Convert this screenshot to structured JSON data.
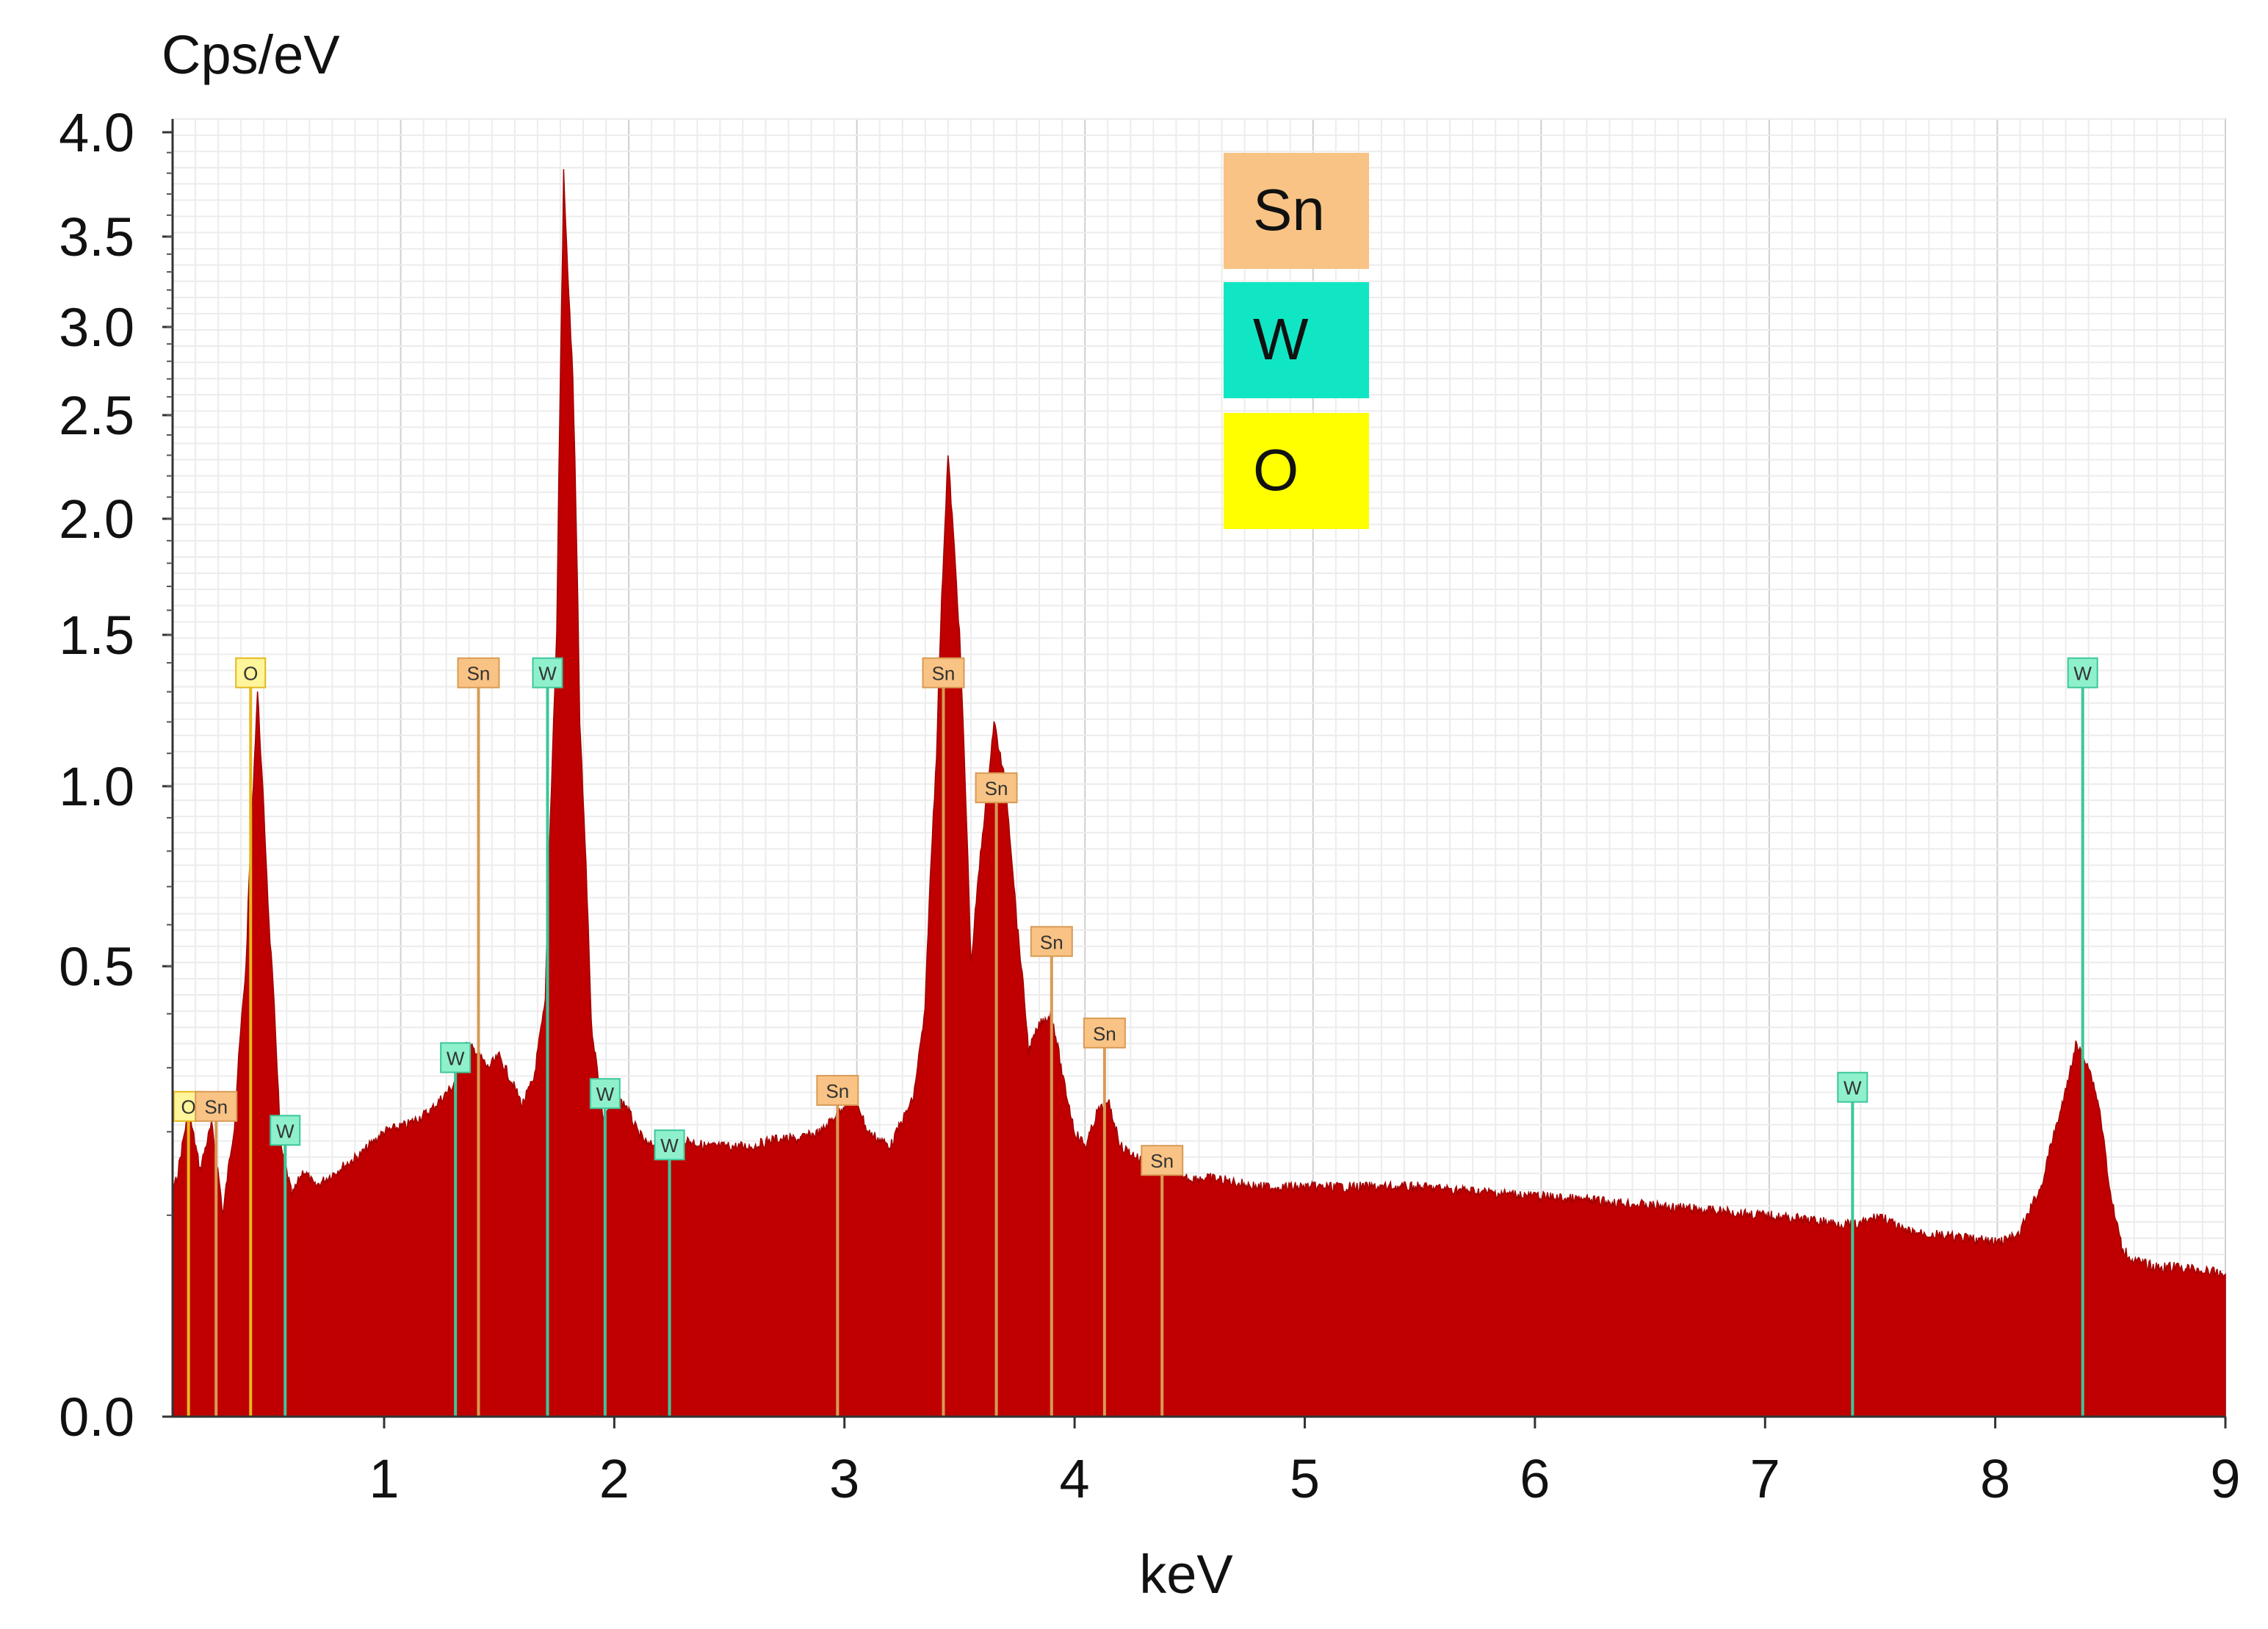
{
  "chart_data": {
    "type": "area",
    "title": "",
    "xlabel": "keV",
    "ylabel": "Cps/eV",
    "x_ticks": [
      "1",
      "2",
      "3",
      "4",
      "5",
      "6",
      "7",
      "8",
      "9"
    ],
    "y_ticks": [
      "0.0",
      "0.5",
      "1.0",
      "1.5",
      "2.0",
      "2.5",
      "3.0",
      "3.5",
      "4.0"
    ],
    "y_scale": "square-root",
    "xlim": [
      0.0,
      9.0
    ],
    "ylim": [
      0.0,
      4.0
    ],
    "grid": true,
    "fill_color": "#c00000",
    "spectrum": {
      "x": [
        0.0,
        0.05,
        0.1,
        0.15,
        0.2,
        0.25,
        0.3,
        0.35,
        0.4,
        0.45,
        0.5,
        0.55,
        0.6,
        0.65,
        0.7,
        0.8,
        0.9,
        1.0,
        1.1,
        1.2,
        1.3,
        1.35,
        1.4,
        1.45,
        1.5,
        1.55,
        1.6,
        1.65,
        1.7,
        1.75,
        1.78,
        1.82,
        1.85,
        1.9,
        1.95,
        2.0,
        2.05,
        2.1,
        2.15,
        2.2,
        2.3,
        2.4,
        2.5,
        2.6,
        2.7,
        2.8,
        2.9,
        3.0,
        3.05,
        3.1,
        3.2,
        3.3,
        3.35,
        3.4,
        3.45,
        3.5,
        3.55,
        3.6,
        3.65,
        3.7,
        3.75,
        3.8,
        3.85,
        3.9,
        3.95,
        4.0,
        4.05,
        4.1,
        4.15,
        4.2,
        4.3,
        4.35,
        4.4,
        4.5,
        4.6,
        4.8,
        5.0,
        5.5,
        6.0,
        6.5,
        7.0,
        7.2,
        7.4,
        7.5,
        7.6,
        7.8,
        8.0,
        8.1,
        8.2,
        8.3,
        8.35,
        8.4,
        8.45,
        8.5,
        8.55,
        8.6,
        8.7,
        8.8,
        9.0
      ],
      "y": [
        0.06,
        0.1,
        0.14,
        0.23,
        0.15,
        0.21,
        0.1,
        0.21,
        0.5,
        1.3,
        0.6,
        0.18,
        0.12,
        0.15,
        0.13,
        0.15,
        0.17,
        0.2,
        0.21,
        0.23,
        0.27,
        0.34,
        0.33,
        0.3,
        0.32,
        0.28,
        0.24,
        0.28,
        0.42,
        1.5,
        3.8,
        2.7,
        1.2,
        0.38,
        0.22,
        0.25,
        0.24,
        0.2,
        0.18,
        0.19,
        0.19,
        0.18,
        0.18,
        0.18,
        0.19,
        0.19,
        0.2,
        0.24,
        0.25,
        0.2,
        0.18,
        0.25,
        0.4,
        1.1,
        2.3,
        1.5,
        0.5,
        0.85,
        1.2,
        1.0,
        0.6,
        0.33,
        0.38,
        0.4,
        0.28,
        0.2,
        0.18,
        0.23,
        0.24,
        0.18,
        0.16,
        0.15,
        0.15,
        0.14,
        0.14,
        0.13,
        0.13,
        0.13,
        0.12,
        0.11,
        0.1,
        0.095,
        0.09,
        0.1,
        0.085,
        0.08,
        0.075,
        0.08,
        0.13,
        0.25,
        0.34,
        0.31,
        0.24,
        0.12,
        0.07,
        0.06,
        0.055,
        0.055,
        0.05
      ]
    },
    "peak_markers": [
      {
        "label": "O",
        "x": 0.15,
        "label_y": 0.235,
        "element": "O"
      },
      {
        "label": "Sn",
        "x": 0.27,
        "label_y": 0.235,
        "element": "Sn"
      },
      {
        "label": "O",
        "x": 0.42,
        "label_y": 1.36,
        "element": "O"
      },
      {
        "label": "W",
        "x": 0.57,
        "label_y": 0.2,
        "element": "W"
      },
      {
        "label": "W",
        "x": 1.31,
        "label_y": 0.315,
        "element": "W"
      },
      {
        "label": "Sn",
        "x": 1.41,
        "label_y": 1.36,
        "element": "Sn"
      },
      {
        "label": "W",
        "x": 1.71,
        "label_y": 1.36,
        "element": "W"
      },
      {
        "label": "W",
        "x": 1.96,
        "label_y": 0.255,
        "element": "W"
      },
      {
        "label": "W",
        "x": 2.24,
        "label_y": 0.18,
        "element": "W"
      },
      {
        "label": "Sn",
        "x": 2.97,
        "label_y": 0.26,
        "element": "Sn"
      },
      {
        "label": "Sn",
        "x": 3.43,
        "label_y": 1.36,
        "element": "Sn"
      },
      {
        "label": "Sn",
        "x": 3.66,
        "label_y": 0.99,
        "element": "Sn"
      },
      {
        "label": "Sn",
        "x": 3.9,
        "label_y": 0.555,
        "element": "Sn"
      },
      {
        "label": "Sn",
        "x": 4.13,
        "label_y": 0.36,
        "element": "Sn"
      },
      {
        "label": "Sn",
        "x": 4.38,
        "label_y": 0.16,
        "element": "Sn"
      },
      {
        "label": "W",
        "x": 7.38,
        "label_y": 0.265,
        "element": "W"
      },
      {
        "label": "W",
        "x": 8.38,
        "label_y": 1.36,
        "element": "W"
      }
    ],
    "legend": {
      "placement": "top-center",
      "entries": [
        {
          "label": "Sn",
          "color": "#f8c384"
        },
        {
          "label": "W",
          "color": "#11e6c4"
        },
        {
          "label": "O",
          "color": "#ffff00"
        }
      ]
    },
    "colors": {
      "Sn": {
        "fill": "#f8c384",
        "line": "#d89b55"
      },
      "W": {
        "fill": "#8ff0cc",
        "line": "#3cc79a"
      },
      "O": {
        "fill": "#fff59a",
        "line": "#e5b820"
      }
    }
  }
}
